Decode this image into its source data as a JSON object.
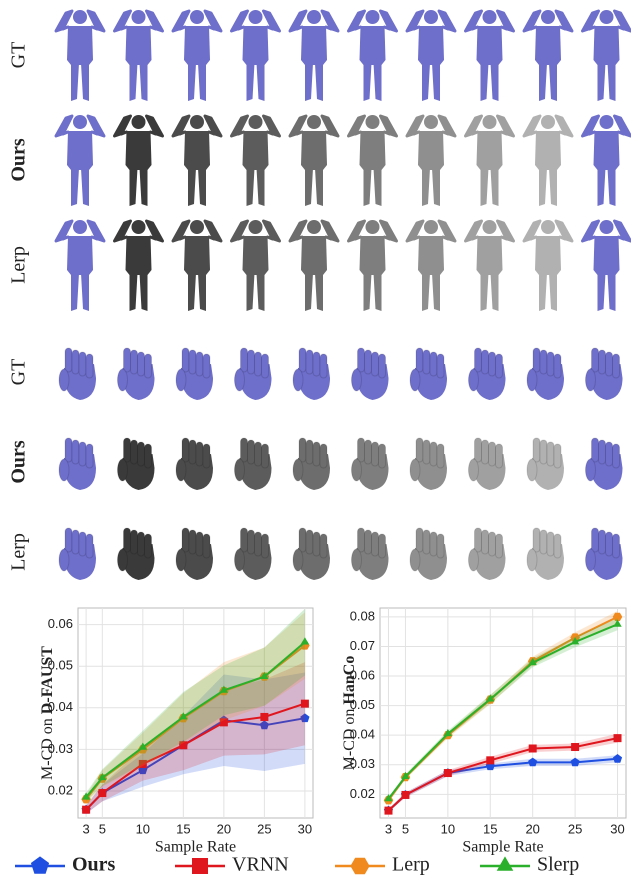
{
  "rows": [
    {
      "label": "GT",
      "bold": false
    },
    {
      "label": "Ours",
      "bold": true
    },
    {
      "label": "Lerp",
      "bold": false
    },
    {
      "label": "GT",
      "bold": false
    },
    {
      "label": "Ours",
      "bold": true
    },
    {
      "label": "Lerp",
      "bold": false
    }
  ],
  "legend": [
    {
      "name": "Ours",
      "color": "#1f4fe0",
      "marker": "pentagon",
      "bold": true
    },
    {
      "name": "VRNN",
      "color": "#e0161e",
      "marker": "square",
      "bold": false
    },
    {
      "name": "Lerp",
      "color": "#f08a1e",
      "marker": "hexagon",
      "bold": false
    },
    {
      "name": "Slerp",
      "color": "#2ab02a",
      "marker": "triangle",
      "bold": false
    }
  ],
  "chart_data": [
    {
      "type": "line",
      "ylabel": "M-CD on",
      "dataset": "D-FAUST",
      "xlabel": "Sample Rate",
      "x": [
        3,
        5,
        10,
        15,
        20,
        25,
        30
      ],
      "xticks": [
        3,
        5,
        10,
        15,
        20,
        25,
        30
      ],
      "xlim": [
        2,
        31
      ],
      "ylim": [
        0.0135,
        0.064
      ],
      "yticks": [
        0.02,
        0.03,
        0.04,
        0.05,
        0.06
      ],
      "grid": true,
      "series": [
        {
          "values": [
            0.0155,
            0.0195,
            0.025,
            0.031,
            0.037,
            0.0358,
            0.0375
          ],
          "spread": [
            0.001,
            0.002,
            0.004,
            0.007,
            0.011,
            0.011,
            0.011
          ]
        },
        {
          "values": [
            0.0155,
            0.0195,
            0.0265,
            0.031,
            0.0365,
            0.0378,
            0.041
          ],
          "spread": [
            0.001,
            0.002,
            0.004,
            0.006,
            0.008,
            0.009,
            0.01
          ]
        },
        {
          "values": [
            0.018,
            0.023,
            0.03,
            0.0375,
            0.044,
            0.0475,
            0.055
          ],
          "spread": [
            0.001,
            0.002,
            0.004,
            0.006,
            0.007,
            0.007,
            0.008
          ]
        },
        {
          "values": [
            0.0185,
            0.0232,
            0.0305,
            0.0378,
            0.0442,
            0.0475,
            0.0558
          ],
          "spread": [
            0.001,
            0.002,
            0.004,
            0.006,
            0.006,
            0.007,
            0.008
          ]
        }
      ]
    },
    {
      "type": "line",
      "ylabel": "M-CD on",
      "dataset": "HanCo",
      "xlabel": "Sample Rate",
      "x": [
        3,
        5,
        10,
        15,
        20,
        25,
        30
      ],
      "xticks": [
        3,
        5,
        10,
        15,
        20,
        25,
        30
      ],
      "xlim": [
        2,
        31
      ],
      "ylim": [
        0.012,
        0.083
      ],
      "yticks": [
        0.02,
        0.03,
        0.04,
        0.05,
        0.06,
        0.07,
        0.08
      ],
      "grid": true,
      "series": [
        {
          "values": [
            0.0145,
            0.0198,
            0.0272,
            0.0295,
            0.0308,
            0.0308,
            0.032
          ],
          "spread": [
            0.0005,
            0.0008,
            0.001,
            0.001,
            0.0012,
            0.0012,
            0.0012
          ]
        },
        {
          "values": [
            0.0145,
            0.0198,
            0.0272,
            0.0315,
            0.0355,
            0.036,
            0.039
          ],
          "spread": [
            0.0005,
            0.0008,
            0.001,
            0.0012,
            0.0012,
            0.0012,
            0.0015
          ]
        },
        {
          "values": [
            0.018,
            0.0258,
            0.04,
            0.052,
            0.065,
            0.073,
            0.08
          ],
          "spread": [
            0.0005,
            0.0008,
            0.001,
            0.0015,
            0.0015,
            0.0018,
            0.002
          ]
        },
        {
          "values": [
            0.0185,
            0.026,
            0.0405,
            0.0522,
            0.0645,
            0.0715,
            0.0775
          ],
          "spread": [
            0.0005,
            0.0008,
            0.001,
            0.0015,
            0.0015,
            0.0018,
            0.002
          ]
        }
      ]
    }
  ]
}
